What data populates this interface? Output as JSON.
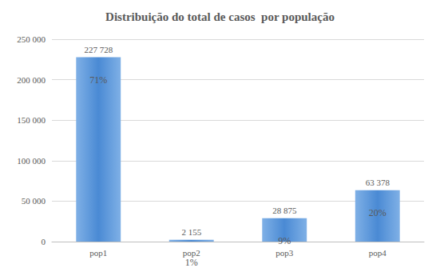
{
  "chart_data": {
    "type": "bar",
    "title": "Distribuição do total de casos  por população",
    "categories": [
      "pop1",
      "pop2",
      "pop3",
      "pop4"
    ],
    "values": [
      227728,
      2155,
      28875,
      63378
    ],
    "value_labels": [
      "227 728",
      "2 155",
      "28 875",
      "63 378"
    ],
    "share_labels": [
      "71%",
      "1%",
      "9%",
      "20%"
    ],
    "color": "#4a8ad4",
    "ylim": [
      0,
      250000
    ],
    "yticks": [
      0,
      {
        "value": 50000,
        "label": "50 000"
      },
      {
        "value": 100000,
        "label": "100 000"
      },
      {
        "value": 150000,
        "label": "150 000"
      },
      {
        "value": 200000,
        "label": "200 000"
      },
      {
        "value": 250000,
        "label": "250 000"
      }
    ],
    "grid": true,
    "data_labels": true
  }
}
